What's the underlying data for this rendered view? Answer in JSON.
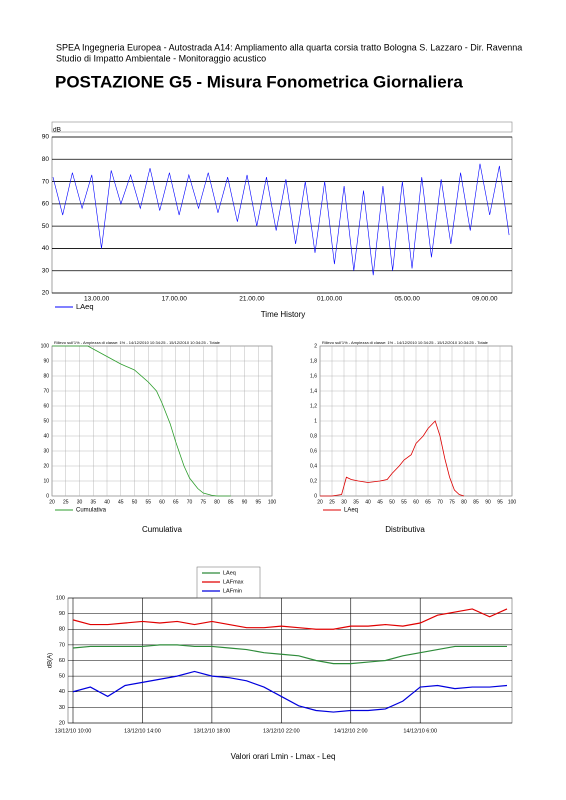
{
  "header": {
    "line1": "SPEA Ingegneria Europea - Autostrada A14: Ampliamento alla quarta corsia tratto Bologna S. Lazzaro - Dir. Ravenna",
    "line2": "Studio di Impatto Ambientale - Monitoraggio acustico",
    "title": "POSTAZIONE G5 - Misura Fonometrica Giornaliera"
  },
  "chart_data": [
    {
      "type": "line",
      "title": "Time History",
      "ylabel": "dB",
      "legend": "bottom-left",
      "grid": "y",
      "x": [
        10.75,
        11.25,
        11.75,
        12.25,
        12.75,
        13.25,
        13.75,
        14.25,
        14.75,
        15.25,
        15.75,
        16.25,
        16.75,
        17.25,
        17.75,
        18.25,
        18.75,
        19.25,
        19.75,
        20.25,
        20.75,
        21.25,
        21.75,
        22.25,
        22.75,
        23.25,
        23.75,
        24.25,
        24.75,
        25.25,
        25.75,
        26.25,
        26.75,
        27.25,
        27.75,
        28.25,
        28.75,
        29.25,
        29.75,
        30.25,
        30.75,
        31.25,
        31.75,
        32.25,
        32.75,
        33.25,
        33.75,
        34.25
      ],
      "xlim": [
        10.7,
        34.4
      ],
      "xticks": [
        {
          "value": 13,
          "label": "13.00.00"
        },
        {
          "value": 17,
          "label": "17.00.00"
        },
        {
          "value": 21,
          "label": "21.00.00"
        },
        {
          "value": 25,
          "label": "01.00.00"
        },
        {
          "value": 29,
          "label": "05.00.00"
        },
        {
          "value": 33,
          "label": "09.00.00"
        }
      ],
      "ylim": [
        20,
        90
      ],
      "yticks": [
        20,
        30,
        40,
        50,
        60,
        70,
        80,
        90
      ],
      "series": [
        {
          "name": "LAeq",
          "color": "#0000ff",
          "values": [
            72,
            55,
            74,
            58,
            73,
            40,
            75,
            60,
            73,
            58,
            76,
            57,
            74,
            55,
            73,
            58,
            74,
            56,
            72,
            52,
            73,
            50,
            72,
            48,
            71,
            42,
            70,
            38,
            70,
            33,
            68,
            30,
            66,
            28,
            68,
            30,
            70,
            31,
            72,
            36,
            71,
            42,
            74,
            48,
            78,
            55,
            77,
            46
          ]
        }
      ]
    },
    {
      "type": "line",
      "title": "Cumulativa",
      "subtitle": "Rilievo sull'1% - Ampiezza di classe: 1% - 14/12/2010 10:34:25 - 15/12/2010 10:34:25 - Totale",
      "legend": "bottom-left",
      "grid": "xy",
      "x": [
        20,
        25,
        30,
        33,
        36,
        40,
        45,
        50,
        55,
        58,
        60,
        63,
        65,
        68,
        70,
        73,
        75,
        78,
        80,
        85
      ],
      "xlim": [
        20,
        100
      ],
      "xticks": [
        20,
        25,
        30,
        35,
        40,
        45,
        50,
        55,
        60,
        65,
        70,
        75,
        80,
        85,
        90,
        95,
        100
      ],
      "ylim": [
        0,
        100
      ],
      "yticks": [
        0,
        10,
        20,
        30,
        40,
        50,
        60,
        70,
        80,
        90,
        100
      ],
      "series": [
        {
          "name": "Cumulativa",
          "color": "#2e9e2e",
          "values": [
            100,
            100,
            100,
            100,
            97,
            93,
            88,
            84,
            76,
            70,
            62,
            48,
            36,
            20,
            12,
            5,
            2,
            0.5,
            0,
            0
          ]
        }
      ]
    },
    {
      "type": "line",
      "title": "Distributiva",
      "subtitle": "Rilievo sull'1% - Ampiezza di classe: 1% - 14/12/2010 10:34:25 - 15/12/2010 10:34:25 - Totale",
      "legend": "bottom-left",
      "grid": "xy",
      "x": [
        20,
        25,
        29,
        31,
        33,
        36,
        40,
        45,
        48,
        50,
        53,
        55,
        58,
        60,
        63,
        65,
        68,
        70,
        72,
        74,
        76,
        78,
        80
      ],
      "xlim": [
        20,
        100
      ],
      "xticks": [
        20,
        25,
        30,
        35,
        40,
        45,
        50,
        55,
        60,
        65,
        70,
        75,
        80,
        85,
        90,
        95,
        100
      ],
      "ylim": [
        0,
        2
      ],
      "yticks": [
        0,
        {
          "value": 0.2,
          "label": "0,2"
        },
        {
          "value": 0.4,
          "label": "0,4"
        },
        {
          "value": 0.6,
          "label": "0,6"
        },
        {
          "value": 0.8,
          "label": "0,8"
        },
        1,
        {
          "value": 1.2,
          "label": "1,2"
        },
        {
          "value": 1.4,
          "label": "1,4"
        },
        {
          "value": 1.6,
          "label": "1,6"
        },
        {
          "value": 1.8,
          "label": "1,8"
        },
        2
      ],
      "series": [
        {
          "name": "LAeq",
          "color": "#dd0000",
          "values": [
            0,
            0,
            0.02,
            0.25,
            0.22,
            0.2,
            0.18,
            0.2,
            0.22,
            0.3,
            0.4,
            0.48,
            0.55,
            0.7,
            0.8,
            0.9,
            1.0,
            0.8,
            0.5,
            0.25,
            0.08,
            0.02,
            0
          ]
        }
      ]
    },
    {
      "type": "line",
      "title": "Valori orari Lmin - Lmax - Leq",
      "ylabel": "dB(A)",
      "legend": "top",
      "grid": "xy",
      "categories": [
        "13/12/10 10:00",
        null,
        null,
        null,
        "13/12/10 14:00",
        null,
        null,
        null,
        "13/12/10 18:00",
        null,
        null,
        null,
        "13/12/10 22:00",
        null,
        null,
        null,
        "14/12/10 2:00",
        null,
        null,
        null,
        "14/12/10 6:00",
        null,
        null,
        null,
        null,
        null
      ],
      "ylim": [
        20,
        100
      ],
      "yticks": [
        20,
        30,
        40,
        50,
        60,
        70,
        80,
        90,
        100
      ],
      "series": [
        {
          "name": "LAeq",
          "color": "#2e8b3a",
          "values": [
            68,
            69,
            69,
            69,
            69,
            70,
            70,
            69,
            69,
            68,
            67,
            65,
            64,
            63,
            60,
            58,
            58,
            59,
            60,
            63,
            65,
            67,
            69,
            69,
            69,
            69
          ]
        },
        {
          "name": "LAFmax",
          "color": "#e00000",
          "values": [
            86,
            83,
            83,
            84,
            85,
            84,
            85,
            83,
            85,
            83,
            81,
            81,
            82,
            81,
            80,
            80,
            82,
            82,
            83,
            82,
            84,
            89,
            91,
            93,
            88,
            93
          ]
        },
        {
          "name": "LAFmin",
          "color": "#0000dd",
          "values": [
            40,
            43,
            37,
            44,
            46,
            48,
            50,
            53,
            50,
            49,
            47,
            43,
            37,
            31,
            28,
            27,
            28,
            28,
            29,
            34,
            43,
            44,
            42,
            43,
            43,
            44
          ]
        }
      ]
    }
  ]
}
